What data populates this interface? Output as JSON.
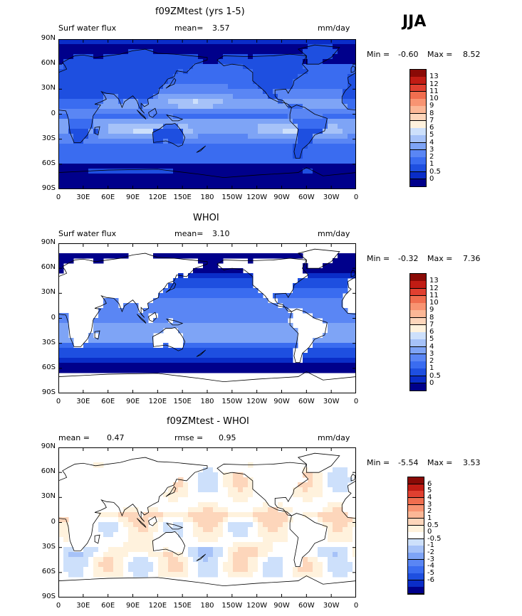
{
  "season": "JJA",
  "colors": {
    "abs_levels": [
      "#00008b",
      "#0a2dc8",
      "#1e4fe0",
      "#3a6cf0",
      "#5a86f4",
      "#7ea4f6",
      "#a6c2f8",
      "#cde0fb",
      "#fff2dd",
      "#fdd6bb",
      "#fbb796",
      "#f89472",
      "#f06e4f",
      "#e04030",
      "#c11c14",
      "#8a0a06"
    ],
    "diff_levels": [
      "#00008b",
      "#0a2dc8",
      "#1e4fe0",
      "#3a6cf0",
      "#5a86f4",
      "#7ea4f6",
      "#a6c2f8",
      "#cde0fb",
      "#ffffff",
      "#fff2dd",
      "#fdd6bb",
      "#fbb796",
      "#f89472",
      "#f06e4f",
      "#e04030",
      "#c11c14",
      "#8a0a06"
    ]
  },
  "chart_data": [
    {
      "type": "heatmap",
      "title": "f09ZMtest (yrs 1-5)",
      "variable": "Surf water flux",
      "mean_label": "mean=",
      "mean": "3.57",
      "units": "mm/day",
      "min_label": "Min =",
      "min": "-0.60",
      "max_label": "Max =",
      "max": "8.52",
      "field": "model",
      "colorbar_levels": [
        "13",
        "12",
        "11",
        "10",
        "9",
        "8",
        "7",
        "6",
        "5",
        "4",
        "3",
        "2",
        "1",
        "0.5",
        "0"
      ]
    },
    {
      "type": "heatmap",
      "title": "WHOI",
      "variable": "Surf water flux",
      "mean_label": "mean=",
      "mean": "3.10",
      "units": "mm/day",
      "min_label": "Min =",
      "min": "-0.32",
      "max_label": "Max =",
      "max": "7.36",
      "field": "obs",
      "colorbar_levels": [
        "13",
        "12",
        "11",
        "10",
        "9",
        "8",
        "7",
        "6",
        "5",
        "4",
        "3",
        "2",
        "1",
        "0.5",
        "0"
      ]
    },
    {
      "type": "heatmap",
      "title": "f09ZMtest - WHOI",
      "mean_label": "mean =",
      "mean": "0.47",
      "rmse_label": "rmse =",
      "rmse": "0.95",
      "units": "mm/day",
      "min_label": "Min =",
      "min": "-5.54",
      "max_label": "Max =",
      "max": "3.53",
      "field": "diff",
      "colorbar_levels": [
        "6",
        "5",
        "4",
        "3",
        "2",
        "1",
        "0.5",
        "0",
        "-0.5",
        "-1",
        "-2",
        "-3",
        "-4",
        "-5",
        "-6"
      ]
    }
  ],
  "axes": {
    "y_ticks": [
      "90N",
      "60N",
      "30N",
      "0",
      "30S",
      "60S",
      "90S"
    ],
    "x_ticks": [
      "0",
      "30E",
      "60E",
      "90E",
      "120E",
      "150E",
      "180",
      "150W",
      "120W",
      "90W",
      "60W",
      "30W",
      "0"
    ]
  }
}
